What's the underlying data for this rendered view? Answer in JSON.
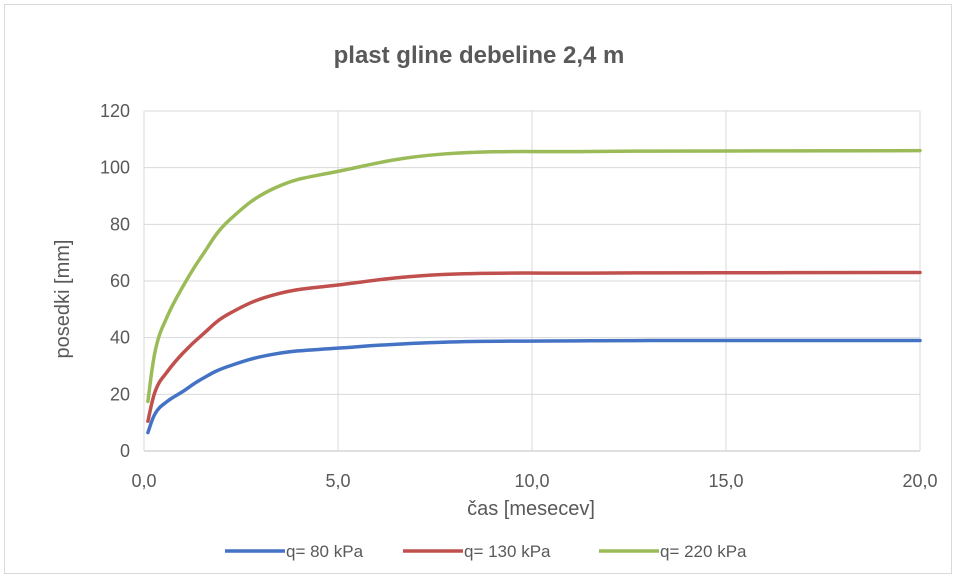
{
  "chart_data": {
    "type": "line",
    "title": "plast gline debeline 2,4 m",
    "xlabel": "čas [mesecev]",
    "ylabel": "posedki [mm]",
    "xlim": [
      0,
      20
    ],
    "ylim": [
      0,
      120
    ],
    "x_ticks": [
      "0,0",
      "5,0",
      "10,0",
      "15,0",
      "20,0"
    ],
    "y_ticks": [
      "0",
      "20",
      "40",
      "60",
      "80",
      "100",
      "120"
    ],
    "grid": true,
    "legend_position": "bottom",
    "series": [
      {
        "name": "q= 80 kPa",
        "color": "#4472c4",
        "x": [
          0.1,
          0.3,
          0.6,
          1.0,
          1.5,
          2.2,
          3.4,
          5.0,
          7.7,
          11.5,
          15.0,
          20.0
        ],
        "y": [
          6.5,
          13.5,
          17.5,
          21.0,
          25.5,
          30.0,
          34.3,
          36.3,
          38.4,
          38.9,
          39.0,
          39.0
        ]
      },
      {
        "name": "q= 130 kPa",
        "color": "#c0504d",
        "x": [
          0.1,
          0.3,
          0.6,
          1.0,
          1.5,
          2.2,
          3.4,
          5.0,
          7.7,
          11.5,
          15.0,
          20.0
        ],
        "y": [
          10.5,
          21.5,
          28.0,
          34.5,
          41.0,
          48.5,
          55.3,
          58.6,
          62.3,
          62.8,
          62.9,
          63.0
        ]
      },
      {
        "name": "q= 220 kPa",
        "color": "#9bbb59",
        "x": [
          0.1,
          0.3,
          0.6,
          1.0,
          1.5,
          2.2,
          3.4,
          5.0,
          7.7,
          11.5,
          15.0,
          20.0
        ],
        "y": [
          17.5,
          36.0,
          47.5,
          58.0,
          69.0,
          81.5,
          93.0,
          98.7,
          104.8,
          105.7,
          105.9,
          106.0
        ]
      }
    ]
  }
}
